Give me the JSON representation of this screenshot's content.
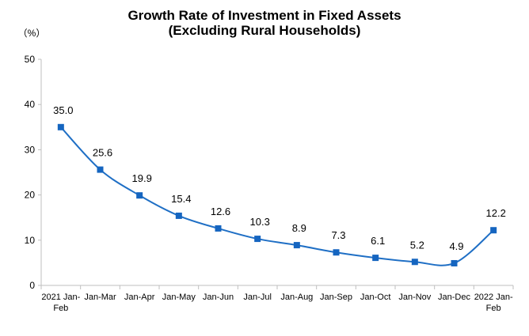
{
  "chart_data": {
    "type": "line",
    "title": "Growth Rate of Investment in Fixed Assets",
    "subtitle": "(Excluding Rural Households)",
    "ylabel": "（%）",
    "ylim": [
      0,
      50
    ],
    "yticks": [
      0,
      10,
      20,
      30,
      40,
      50
    ],
    "grid": false,
    "categories": [
      [
        "2021 Jan-",
        "Feb"
      ],
      [
        "Jan-Mar"
      ],
      [
        "Jan-Apr"
      ],
      [
        "Jan-May"
      ],
      [
        "Jan-Jun"
      ],
      [
        "Jan-Jul"
      ],
      [
        "Jan-Aug"
      ],
      [
        "Jan-Sep"
      ],
      [
        "Jan-Oct"
      ],
      [
        "Jan-Nov"
      ],
      [
        "Jan-Dec"
      ],
      [
        "2022 Jan-",
        "Feb"
      ]
    ],
    "series": [
      {
        "values": [
          35.0,
          25.6,
          19.9,
          15.4,
          12.6,
          10.3,
          8.9,
          7.3,
          6.1,
          5.2,
          4.9,
          12.2
        ],
        "labels": [
          "35.0",
          "25.6",
          "19.9",
          "15.4",
          "12.6",
          "10.3",
          "8.9",
          "7.3",
          "6.1",
          "5.2",
          "4.9",
          "12.2"
        ],
        "color": "#1F6FC5",
        "marker_color": "#1565C0"
      }
    ],
    "axis_color": "#BFBFBF"
  }
}
